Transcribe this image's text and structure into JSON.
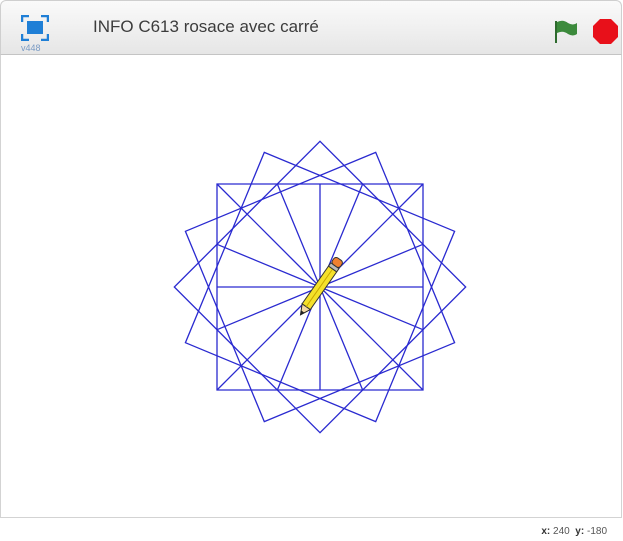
{
  "header": {
    "version": "v448",
    "title": "INFO C613 rosace avec carré"
  },
  "status": {
    "x_label": "x:",
    "x": 240,
    "y_label": "y:",
    "y": -180
  }
}
